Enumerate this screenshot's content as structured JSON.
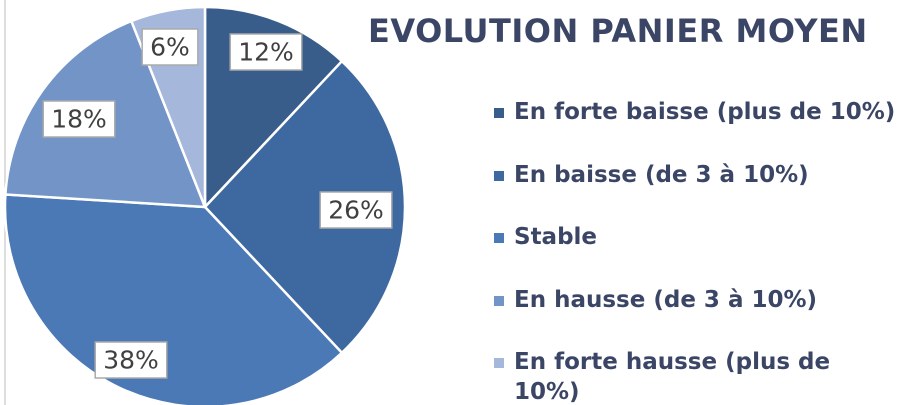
{
  "chart_data": {
    "type": "pie",
    "title": "EVOLUTION PANIER MOYEN",
    "categories": [
      "En forte baisse (plus de 10%)",
      "En baisse (de 3 à 10%)",
      "Stable",
      "En hausse (de 3 à 10%)",
      "En forte hausse (plus de 10%)"
    ],
    "values": [
      12,
      26,
      38,
      18,
      6
    ],
    "value_labels": [
      "12%",
      "26%",
      "38%",
      "18%",
      "6%"
    ],
    "colors": [
      "#385d8a",
      "#3e69a0",
      "#4a79b6",
      "#7394c7",
      "#a5b7db"
    ],
    "legend": "right"
  }
}
